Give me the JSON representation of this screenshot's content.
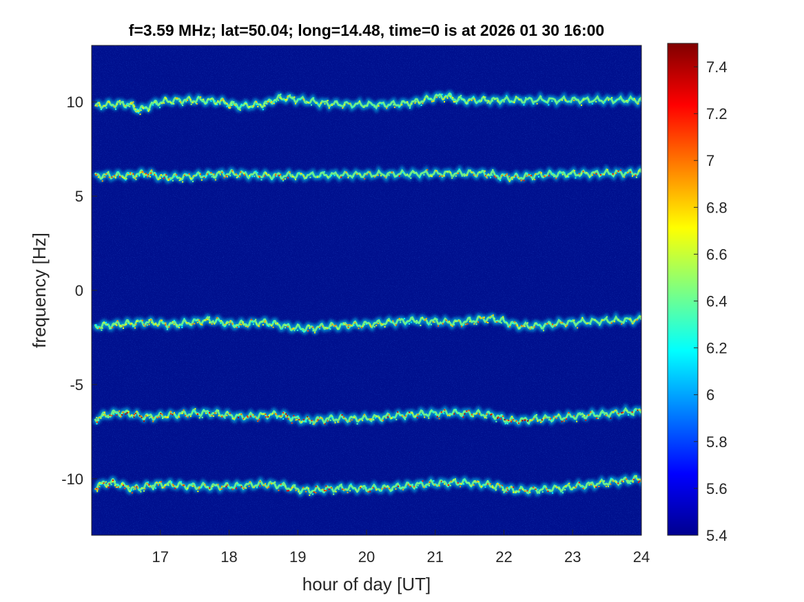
{
  "chart_data": {
    "type": "heatmap",
    "title": "f=3.59 MHz;  lat=50.04; long=14.48, time=0 is at 2026 01 30 16:00",
    "xlabel": "hour of day [UT]",
    "ylabel": "frequency [Hz]",
    "xlim": [
      16,
      24
    ],
    "ylim": [
      -13,
      13
    ],
    "xticks": [
      17,
      18,
      19,
      20,
      21,
      22,
      23,
      24
    ],
    "yticks": [
      -10,
      -5,
      0,
      5,
      10
    ],
    "grid": false,
    "colormap": "jet",
    "colorbar": {
      "range": [
        5.4,
        7.5
      ],
      "ticks": [
        "5.4",
        "5.6",
        "5.8",
        "6",
        "6.2",
        "6.4",
        "6.6",
        "6.8",
        "7",
        "7.2",
        "7.4"
      ]
    },
    "background_color": "#00108e",
    "traces": [
      {
        "label": "trace near 10 Hz",
        "points": [
          [
            16.05,
            9.8
          ],
          [
            16.5,
            9.9
          ],
          [
            16.7,
            9.6
          ],
          [
            17.0,
            10.0
          ],
          [
            17.5,
            10.1
          ],
          [
            17.9,
            10.0
          ],
          [
            18.15,
            9.8
          ],
          [
            18.5,
            9.9
          ],
          [
            18.8,
            10.2
          ],
          [
            19.5,
            9.9
          ],
          [
            20.5,
            9.9
          ],
          [
            21.1,
            10.3
          ],
          [
            21.4,
            10.1
          ],
          [
            22.0,
            10.1
          ],
          [
            23.0,
            10.1
          ],
          [
            24.0,
            10.1
          ]
        ],
        "intensity": 0.55
      },
      {
        "label": "trace near 6 Hz",
        "points": [
          [
            16.05,
            6.1
          ],
          [
            16.5,
            6.1
          ],
          [
            16.8,
            6.2
          ],
          [
            17.1,
            6.0
          ],
          [
            17.6,
            6.1
          ],
          [
            18.0,
            6.2
          ],
          [
            18.5,
            6.1
          ],
          [
            19.0,
            6.1
          ],
          [
            20.0,
            6.15
          ],
          [
            21.0,
            6.2
          ],
          [
            21.7,
            6.2
          ],
          [
            22.1,
            6.0
          ],
          [
            22.6,
            6.15
          ],
          [
            23.3,
            6.2
          ],
          [
            24.0,
            6.25
          ]
        ],
        "intensity": 0.8
      },
      {
        "label": "trace near -2 Hz",
        "points": [
          [
            16.05,
            -1.9
          ],
          [
            16.4,
            -1.8
          ],
          [
            16.8,
            -1.7
          ],
          [
            17.2,
            -1.8
          ],
          [
            17.7,
            -1.6
          ],
          [
            18.1,
            -1.8
          ],
          [
            18.5,
            -1.7
          ],
          [
            19.0,
            -2.0
          ],
          [
            19.5,
            -1.9
          ],
          [
            20.0,
            -1.8
          ],
          [
            20.7,
            -1.6
          ],
          [
            21.3,
            -1.7
          ],
          [
            21.8,
            -1.5
          ],
          [
            22.3,
            -1.9
          ],
          [
            23.0,
            -1.7
          ],
          [
            24.0,
            -1.55
          ]
        ],
        "intensity": 0.7
      },
      {
        "label": "trace near -7 Hz",
        "points": [
          [
            16.05,
            -6.8
          ],
          [
            16.4,
            -6.5
          ],
          [
            16.8,
            -6.7
          ],
          [
            17.2,
            -6.6
          ],
          [
            17.7,
            -6.5
          ],
          [
            18.2,
            -6.7
          ],
          [
            18.7,
            -6.6
          ],
          [
            19.1,
            -6.9
          ],
          [
            19.5,
            -6.8
          ],
          [
            20.0,
            -6.8
          ],
          [
            20.6,
            -6.6
          ],
          [
            21.2,
            -6.5
          ],
          [
            21.8,
            -6.6
          ],
          [
            22.1,
            -6.9
          ],
          [
            22.6,
            -6.8
          ],
          [
            23.3,
            -6.6
          ],
          [
            24.0,
            -6.4
          ]
        ],
        "intensity": 0.95
      },
      {
        "label": "trace near -10.4 Hz",
        "points": [
          [
            16.05,
            -10.4
          ],
          [
            16.3,
            -10.2
          ],
          [
            16.6,
            -10.5
          ],
          [
            17.0,
            -10.3
          ],
          [
            17.5,
            -10.4
          ],
          [
            18.0,
            -10.4
          ],
          [
            18.6,
            -10.3
          ],
          [
            19.1,
            -10.6
          ],
          [
            19.6,
            -10.5
          ],
          [
            20.2,
            -10.5
          ],
          [
            20.8,
            -10.3
          ],
          [
            21.4,
            -10.2
          ],
          [
            21.9,
            -10.4
          ],
          [
            22.2,
            -10.6
          ],
          [
            22.8,
            -10.5
          ],
          [
            23.5,
            -10.2
          ],
          [
            24.0,
            -10.0
          ]
        ],
        "intensity": 0.85
      }
    ]
  }
}
